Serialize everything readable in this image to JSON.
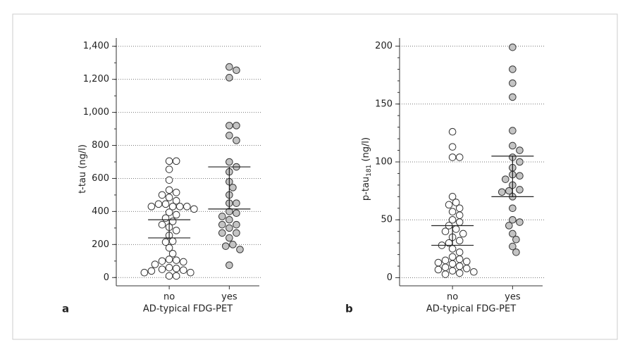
{
  "chart_data": [
    {
      "type": "strip",
      "panel_label": "a",
      "ylabel": "t-tau (ng/l)",
      "xlabel": "AD-typical FDG-PET",
      "categories": [
        "no",
        "yes"
      ],
      "ylim": [
        -50,
        1450
      ],
      "yticks": [
        0,
        200,
        400,
        600,
        800,
        {
          "value": 1000,
          "label": "1,000"
        },
        {
          "value": 1200,
          "label": "1,200"
        },
        {
          "value": 1400,
          "label": "1,400"
        }
      ],
      "minor_step": 100,
      "grid": true,
      "series": [
        {
          "name": "no",
          "color": "#ffffff",
          "values": [
            705,
            705,
            655,
            590,
            530,
            515,
            500,
            485,
            465,
            445,
            445,
            430,
            430,
            430,
            430,
            415,
            395,
            380,
            360,
            340,
            320,
            305,
            285,
            255,
            220,
            215,
            180,
            145,
            110,
            105,
            100,
            95,
            80,
            60,
            55,
            50,
            45,
            40,
            30,
            30,
            10,
            10
          ],
          "lower": 240,
          "upper": 350
        },
        {
          "name": "yes",
          "color": "#c4c4c4",
          "values": [
            1275,
            1255,
            1210,
            920,
            920,
            860,
            830,
            700,
            670,
            640,
            580,
            545,
            500,
            450,
            450,
            400,
            390,
            370,
            350,
            320,
            320,
            300,
            270,
            270,
            240,
            200,
            190,
            170,
            75
          ],
          "lower": 415,
          "upper": 670
        }
      ]
    },
    {
      "type": "strip",
      "panel_label": "b",
      "ylabel": "p-tau",
      "ylabel_sub": "181",
      "ylabel_suffix": " (ng/l)",
      "xlabel": "AD-typical FDG-PET",
      "categories": [
        "no",
        "yes"
      ],
      "ylim": [
        -7,
        207
      ],
      "yticks": [
        0,
        50,
        100,
        150,
        200
      ],
      "minor_step": 10,
      "grid": true,
      "series": [
        {
          "name": "no",
          "color": "#ffffff",
          "values": [
            126,
            113,
            104,
            104,
            70,
            65,
            63,
            60,
            57,
            54,
            50,
            48,
            45,
            42,
            40,
            38,
            35,
            32,
            30,
            28,
            25,
            22,
            18,
            16,
            15,
            14,
            13,
            12,
            10,
            9,
            8,
            7,
            6,
            5,
            4,
            3
          ],
          "lower": 28,
          "upper": 45
        },
        {
          "name": "yes",
          "color": "#c4c4c4",
          "values": [
            199,
            180,
            168,
            156,
            127,
            114,
            110,
            104,
            100,
            95,
            89,
            88,
            85,
            80,
            76,
            75,
            74,
            70,
            60,
            50,
            48,
            45,
            38,
            33,
            27,
            22
          ],
          "lower": 70,
          "upper": 105
        }
      ]
    }
  ]
}
